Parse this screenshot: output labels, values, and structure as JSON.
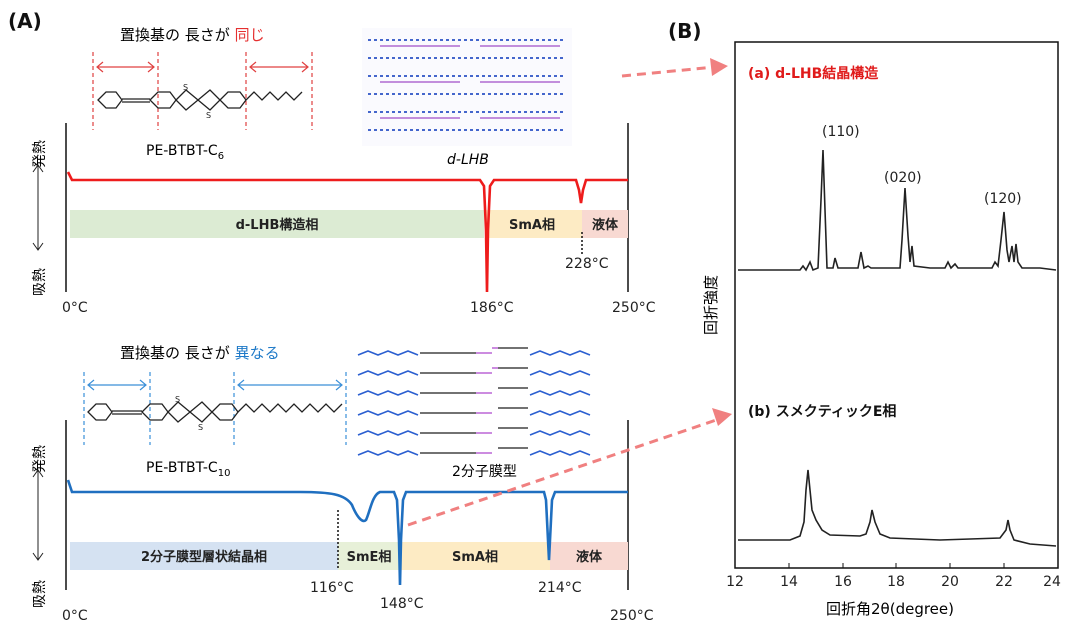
{
  "panel_a_label": "(A)",
  "panel_b_label": "(B)",
  "top": {
    "header_prefix": "置換基の 長さが",
    "header_highlight": "同じ",
    "compound": "PE-BTBT-C",
    "compound_sub": "6",
    "structure_label": "d-LHB",
    "exo": "発熱",
    "endo": "吸熱",
    "t_start": "0°C",
    "t_end": "250°C",
    "peaks": [
      "186°C",
      "228°C"
    ],
    "phases": [
      "d-LHB構造相",
      "SmA相",
      "液体"
    ]
  },
  "bottom": {
    "header_prefix": "置換基の 長さが",
    "header_highlight": "異なる",
    "compound": "PE-BTBT-C",
    "compound_sub": "10",
    "structure_label": "2分子膜型",
    "exo": "発熱",
    "endo": "吸熱",
    "t_start": "0°C",
    "t_end": "250°C",
    "peaks": [
      "116°C",
      "148°C",
      "214°C"
    ],
    "phases": [
      "2分子膜型層状結晶相",
      "SmE相",
      "SmA相",
      "液体"
    ]
  },
  "xrd": {
    "a_label": "(a) d-LHB結晶構造",
    "b_label": "(b) スメクティックE相",
    "ylabel": "回折強度",
    "xlabel": "回折角2θ(degree)",
    "xticks": [
      "12",
      "14",
      "16",
      "18",
      "20",
      "22",
      "24"
    ],
    "miller": [
      "(110)",
      "(020)",
      "(120)"
    ]
  },
  "colors": {
    "red_curve": "#ee1c1c",
    "blue_curve": "#1f6fc0",
    "arrow": "#f08080",
    "green_band": "#dcebd3",
    "blue_band": "#d5e2f2",
    "yellow_band": "#fdebc4",
    "pink_band": "#f8d9d2"
  }
}
